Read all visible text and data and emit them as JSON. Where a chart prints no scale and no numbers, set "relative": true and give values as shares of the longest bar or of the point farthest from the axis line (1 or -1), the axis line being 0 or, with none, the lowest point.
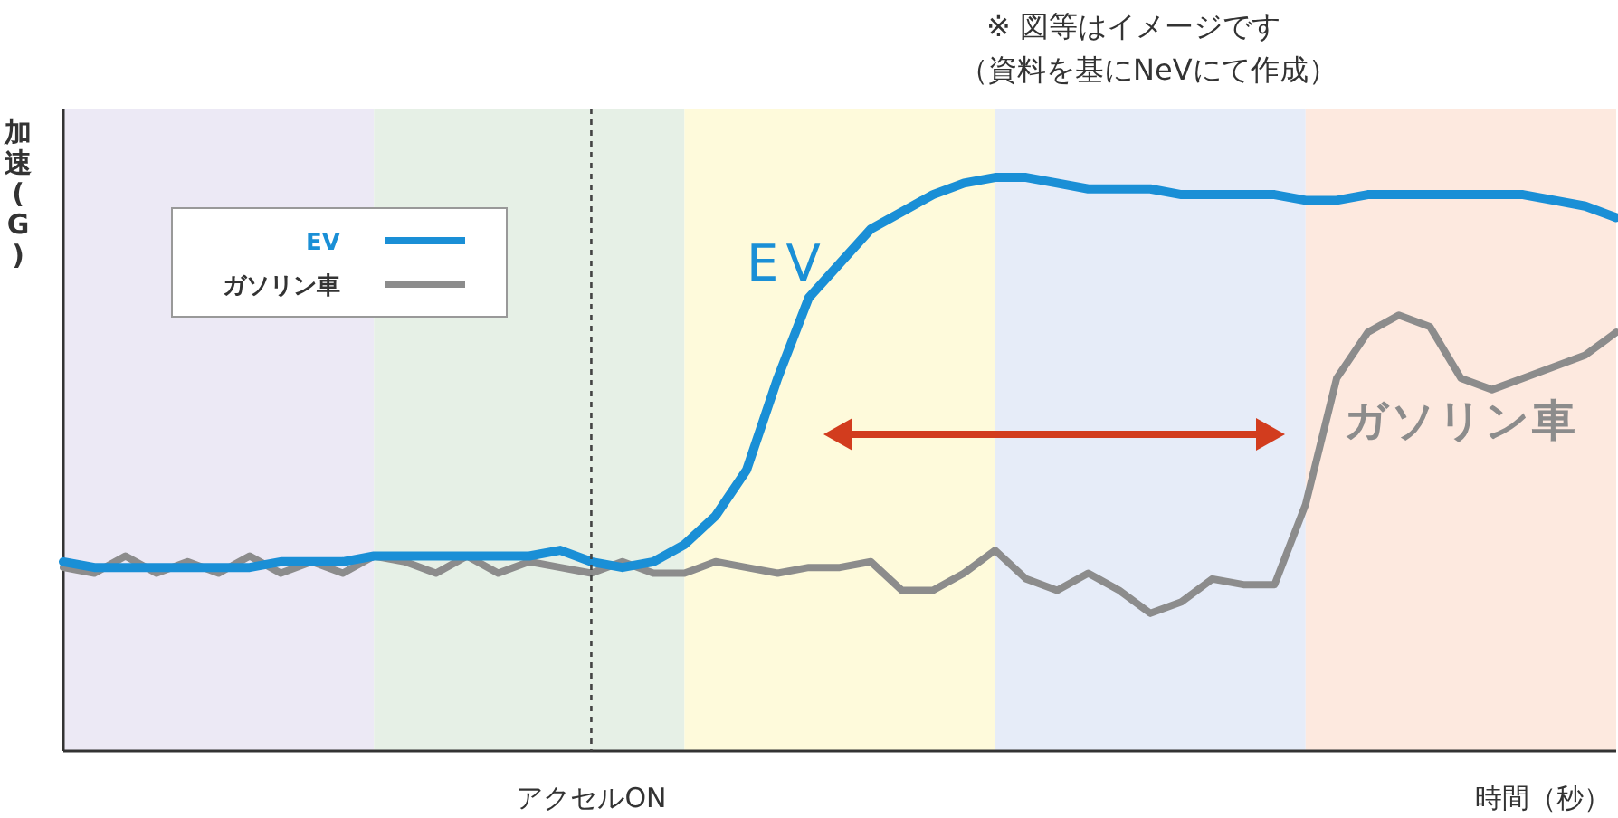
{
  "chart_data": {
    "type": "line",
    "relative": true,
    "ylabel": "加速(G)",
    "xlabel": "時間（秒）",
    "categories": [
      null,
      null,
      null,
      null,
      null,
      null,
      null,
      null,
      null,
      null,
      null,
      null,
      null,
      null,
      null,
      null,
      null,
      null,
      null,
      null,
      null,
      null,
      null,
      null,
      null,
      null,
      null,
      null,
      null,
      null,
      null,
      null,
      null,
      null,
      null,
      null,
      null,
      null,
      null,
      null,
      null,
      null,
      null,
      null,
      null,
      null,
      null,
      null,
      null,
      null,
      null
    ],
    "series": [
      {
        "name": "EV",
        "color": "#1a8fd6",
        "values": [
          0.33,
          0.32,
          0.32,
          0.32,
          0.32,
          0.32,
          0.32,
          0.33,
          0.33,
          0.33,
          0.34,
          0.34,
          0.34,
          0.34,
          0.34,
          0.34,
          0.35,
          0.33,
          0.32,
          0.33,
          0.36,
          0.41,
          0.49,
          0.65,
          0.79,
          0.85,
          0.91,
          0.94,
          0.97,
          0.99,
          1,
          1,
          0.99,
          0.98,
          0.98,
          0.98,
          0.97,
          0.97,
          0.97,
          0.97,
          0.96,
          0.96,
          0.97,
          0.97,
          0.97,
          0.97,
          0.97,
          0.97,
          0.96,
          0.95,
          0.93
        ]
      },
      {
        "name": "ガソリン車",
        "color": "#8c8c8c",
        "values": [
          0.32,
          0.31,
          0.34,
          0.31,
          0.33,
          0.31,
          0.34,
          0.31,
          0.33,
          0.31,
          0.34,
          0.33,
          0.31,
          0.34,
          0.31,
          0.33,
          0.32,
          0.31,
          0.33,
          0.31,
          0.31,
          0.33,
          0.32,
          0.31,
          0.32,
          0.32,
          0.33,
          0.28,
          0.28,
          0.31,
          0.35,
          0.3,
          0.28,
          0.31,
          0.28,
          0.24,
          0.26,
          0.3,
          0.29,
          0.29,
          0.43,
          0.65,
          0.73,
          0.76,
          0.74,
          0.65,
          0.63,
          0.65,
          0.67,
          0.69,
          0.73
        ]
      }
    ],
    "annotations": [
      "※ 図等はイメージです",
      "（資料を基にNeVにて作成）",
      "アクセルON"
    ],
    "legend": "top left",
    "marker": "none",
    "line_style": "solid"
  }
}
